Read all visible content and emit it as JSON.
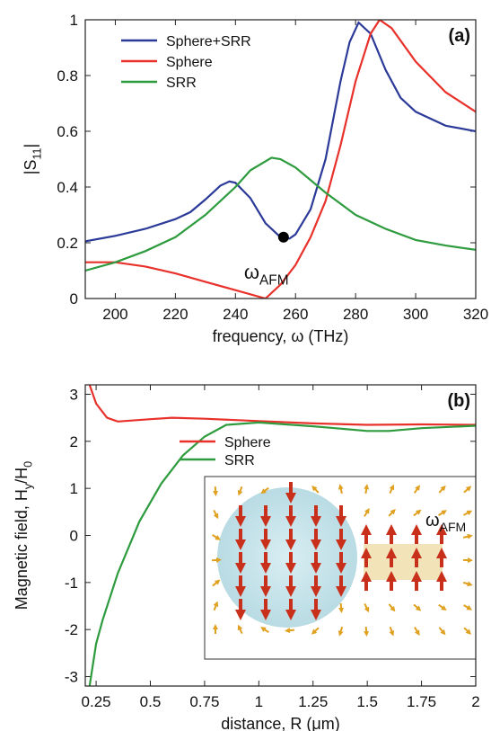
{
  "chart_data": [
    {
      "type": "line",
      "panel_label": "(a)",
      "xlabel": "frequency, ω (THz)",
      "ylabel": [
        {
          "text": "|S"
        },
        {
          "text": "11",
          "sub": true
        },
        {
          "text": "|"
        }
      ],
      "xlim": [
        190,
        320
      ],
      "xticks": [
        200,
        220,
        240,
        260,
        280,
        300,
        320
      ],
      "ylim": [
        0,
        1
      ],
      "yticks": [
        0,
        0.2,
        0.4,
        0.6,
        0.8,
        1
      ],
      "legend": "upper left",
      "series": [
        {
          "name": "Sphere+SRR",
          "color": "#2b3a98",
          "x": [
            190,
            200,
            210,
            220,
            225,
            230,
            235,
            238,
            240,
            245,
            250,
            255,
            258,
            260,
            265,
            270,
            275,
            278,
            281,
            285,
            290,
            295,
            300,
            310,
            320
          ],
          "values": [
            0.205,
            0.225,
            0.25,
            0.285,
            0.31,
            0.355,
            0.405,
            0.42,
            0.415,
            0.36,
            0.27,
            0.22,
            0.215,
            0.23,
            0.32,
            0.5,
            0.78,
            0.92,
            0.99,
            0.95,
            0.82,
            0.72,
            0.67,
            0.62,
            0.6
          ]
        },
        {
          "name": "Sphere",
          "color": "#e8312a",
          "x": [
            190,
            200,
            210,
            220,
            230,
            240,
            250,
            255,
            260,
            265,
            270,
            275,
            280,
            285,
            288,
            292,
            300,
            310,
            320
          ],
          "values": [
            0.13,
            0.13,
            0.115,
            0.09,
            0.06,
            0.03,
            0.0,
            0.05,
            0.12,
            0.22,
            0.35,
            0.55,
            0.78,
            0.95,
            1.0,
            0.97,
            0.85,
            0.74,
            0.67
          ]
        },
        {
          "name": "SRR",
          "color": "#2e9b3e",
          "x": [
            190,
            200,
            210,
            220,
            230,
            240,
            245,
            252,
            255,
            260,
            270,
            280,
            290,
            300,
            310,
            320
          ],
          "values": [
            0.1,
            0.13,
            0.17,
            0.22,
            0.3,
            0.4,
            0.46,
            0.505,
            0.5,
            0.47,
            0.38,
            0.3,
            0.25,
            0.21,
            0.19,
            0.175
          ]
        }
      ],
      "marker": {
        "x": 256,
        "y": 0.22
      },
      "annotation": [
        {
          "text": "ω"
        },
        {
          "text": "AFM",
          "sub": true
        }
      ]
    },
    {
      "type": "line",
      "panel_label": "(b)",
      "xlabel": "distance, R (μm)",
      "ylabel": [
        {
          "text": "Magnetic field, H"
        },
        {
          "text": "y",
          "sub": true
        },
        {
          "text": "/H"
        },
        {
          "text": "0",
          "sub": true
        }
      ],
      "xlim": [
        0.2,
        2
      ],
      "xticks": [
        0.25,
        0.5,
        0.75,
        1,
        1.25,
        1.5,
        1.75,
        2
      ],
      "ylim": [
        -3.2,
        3.2
      ],
      "yticks": [
        -3,
        -2,
        -1,
        0,
        1,
        2,
        3
      ],
      "legend": "center",
      "series": [
        {
          "name": "Sphere",
          "color": "#e8312a",
          "x": [
            0.22,
            0.25,
            0.3,
            0.35,
            0.5,
            0.6,
            0.75,
            1,
            1.25,
            1.5,
            1.75,
            2
          ],
          "values": [
            3.2,
            2.8,
            2.5,
            2.42,
            2.47,
            2.5,
            2.48,
            2.43,
            2.38,
            2.35,
            2.36,
            2.35
          ]
        },
        {
          "name": "SRR",
          "color": "#2e9b3e",
          "x": [
            0.22,
            0.25,
            0.28,
            0.35,
            0.45,
            0.55,
            0.65,
            0.75,
            0.85,
            1,
            1.25,
            1.5,
            1.6,
            1.75,
            2
          ],
          "values": [
            -3.2,
            -2.3,
            -1.8,
            -0.8,
            0.3,
            1.1,
            1.7,
            2.1,
            2.35,
            2.4,
            2.32,
            2.22,
            2.22,
            2.28,
            2.33
          ]
        }
      ],
      "inset_label": [
        {
          "text": "ω"
        },
        {
          "text": "AFM",
          "sub": true
        }
      ]
    }
  ]
}
